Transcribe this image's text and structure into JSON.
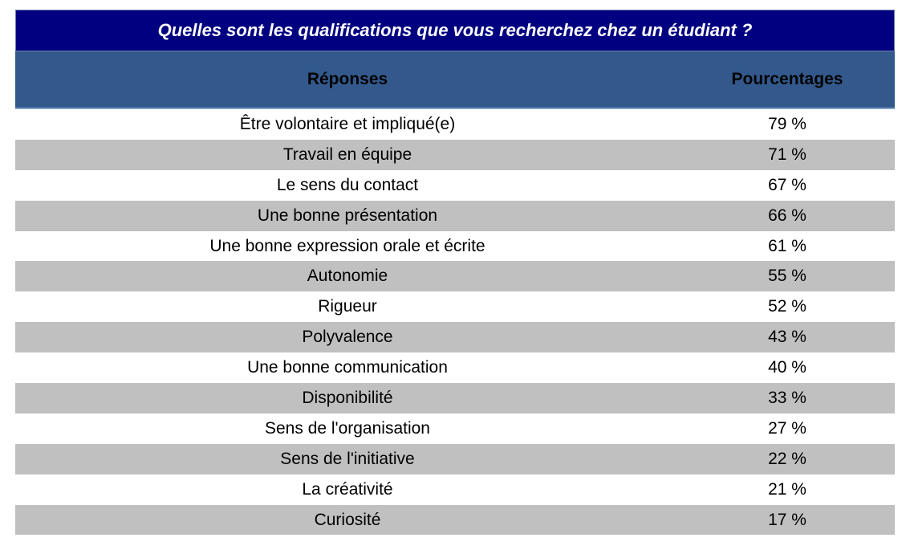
{
  "table": {
    "title": "Quelles sont les qualifications que vous recherchez chez un étudiant ?",
    "headers": {
      "responses": "Réponses",
      "percentages": "Pourcentages"
    },
    "rows": [
      {
        "response": "Être volontaire et impliqué(e)",
        "percentage": "79 %"
      },
      {
        "response": "Travail en équipe",
        "percentage": "71 %"
      },
      {
        "response": "Le sens du contact",
        "percentage": "67 %"
      },
      {
        "response": "Une bonne présentation",
        "percentage": "66 %"
      },
      {
        "response": "Une bonne expression orale et écrite",
        "percentage": "61 %"
      },
      {
        "response": "Autonomie",
        "percentage": "55 %"
      },
      {
        "response": "Rigueur",
        "percentage": "52 %"
      },
      {
        "response": "Polyvalence",
        "percentage": "43 %"
      },
      {
        "response": "Une bonne communication",
        "percentage": "40 %"
      },
      {
        "response": "Disponibilité",
        "percentage": "33 %"
      },
      {
        "response": "Sens de l'organisation",
        "percentage": "27 %"
      },
      {
        "response": "Sens de l'initiative",
        "percentage": "22 %"
      },
      {
        "response": "La créativité",
        "percentage": "21 %"
      },
      {
        "response": "Curiosité",
        "percentage": "17 %"
      }
    ]
  },
  "colors": {
    "title_background": "#000080",
    "header_background": "#33598c",
    "alternate_row": "#c0c0c0"
  }
}
